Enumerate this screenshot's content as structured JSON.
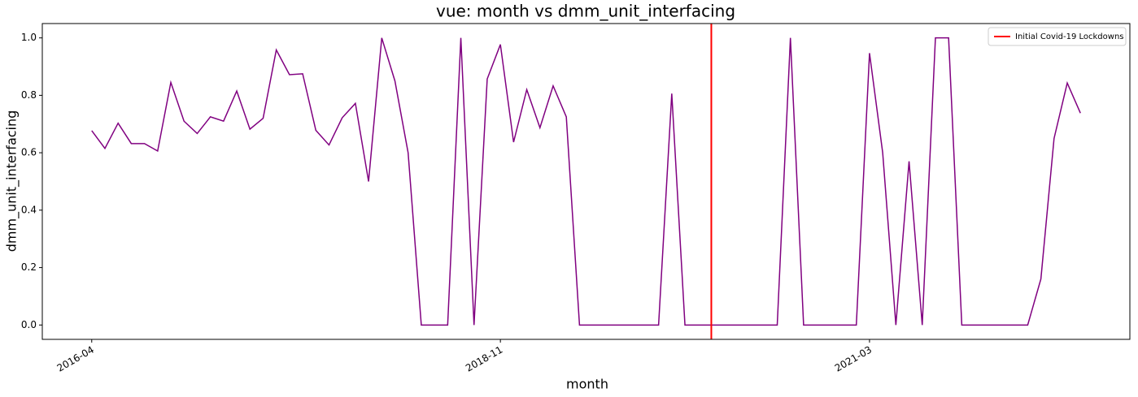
{
  "chart_data": {
    "type": "line",
    "title": "vue: month vs dmm_unit_interfacing",
    "xlabel": "month",
    "ylabel": "dmm_unit_interfacing",
    "x": [
      "2016-04",
      "2016-05",
      "2016-06",
      "2016-07",
      "2016-08",
      "2016-09",
      "2016-10",
      "2016-11",
      "2016-12",
      "2017-01",
      "2017-02",
      "2017-03",
      "2017-04",
      "2017-05",
      "2017-06",
      "2017-07",
      "2017-08",
      "2017-09",
      "2017-10",
      "2017-11",
      "2017-12",
      "2018-01",
      "2018-02",
      "2018-03",
      "2018-04",
      "2018-05",
      "2018-06",
      "2018-07",
      "2018-08",
      "2018-09",
      "2018-10",
      "2018-11",
      "2018-12",
      "2019-01",
      "2019-02",
      "2019-03",
      "2019-04",
      "2019-05",
      "2019-06",
      "2019-07",
      "2019-08",
      "2019-09",
      "2019-10",
      "2019-11",
      "2019-12",
      "2020-01",
      "2020-02",
      "2020-03",
      "2020-04",
      "2020-05",
      "2020-06",
      "2020-07",
      "2020-08",
      "2020-09",
      "2020-10",
      "2020-11",
      "2020-12",
      "2021-01",
      "2021-02",
      "2021-03",
      "2021-04",
      "2021-05",
      "2021-06",
      "2021-07",
      "2021-08",
      "2021-09",
      "2021-10",
      "2021-11",
      "2021-12",
      "2022-01",
      "2022-02",
      "2022-03",
      "2022-04",
      "2022-05",
      "2022-06",
      "2022-07"
    ],
    "series": [
      {
        "name": "dmm_unit_interfacing",
        "color": "purple",
        "values": [
          0.677,
          0.615,
          0.703,
          0.632,
          0.632,
          0.606,
          0.845,
          0.71,
          0.667,
          0.725,
          0.71,
          0.815,
          0.682,
          0.72,
          0.958,
          0.872,
          0.875,
          0.678,
          0.627,
          0.722,
          0.772,
          0.5,
          1.0,
          0.85,
          0.6,
          0,
          0,
          0,
          1.0,
          0,
          0.857,
          0.977,
          0.637,
          0.82,
          0.687,
          0.833,
          0.725,
          0,
          0,
          0,
          0,
          0,
          0,
          0,
          0.806,
          0,
          0,
          0,
          0,
          0,
          0,
          0,
          0,
          1.0,
          0,
          0,
          0,
          0,
          0,
          0.947,
          0.6,
          0,
          0.57,
          0,
          1.0,
          1.0,
          0,
          0,
          0,
          0,
          0,
          0,
          0.16,
          0.65,
          0.843,
          0.738
        ]
      }
    ],
    "xticks": [
      "2016-04",
      "2018-11",
      "2021-03"
    ],
    "ylim": [
      -0.05,
      1.05
    ],
    "yticks": [
      {
        "value": 0,
        "label": "0.0"
      },
      0.2,
      0.4,
      0.6,
      0.8,
      {
        "value": 1,
        "label": "1.0"
      }
    ],
    "vline": {
      "x": "2020-03",
      "label": "Initial Covid-19 Lockdowns",
      "color": "red"
    },
    "legend": "upper right",
    "grid": false
  }
}
